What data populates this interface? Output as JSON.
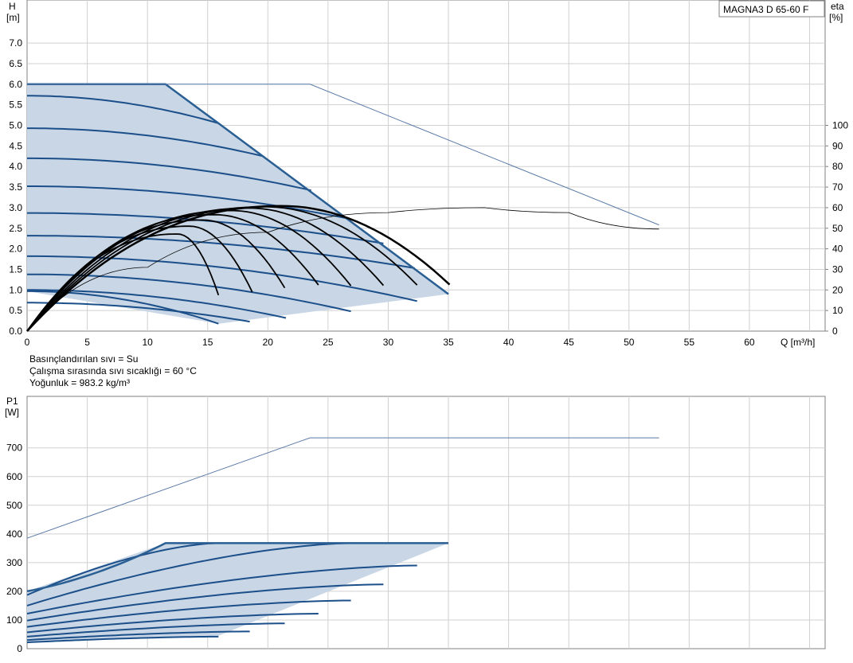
{
  "legend_box": "MAGNA3 D 65-60 F",
  "fluid_info": [
    "Basınçlandırılan sıvı = Su",
    "Çalışma sırasında sıvı sıcaklığı = 60 °C",
    "Yoğunluk = 983.2 kg/m³"
  ],
  "colors": {
    "curve": "#1b4f8a",
    "envelope": "#2a5f94",
    "fill": "#c9d6e5",
    "grid": "#d0d0d0",
    "efficiency": "#000000",
    "max_curve": "#5a7aa8"
  },
  "chart_data": [
    {
      "type": "line",
      "x_axis": {
        "label": "Q [m³/h]",
        "ticks": [
          0,
          5,
          10,
          15,
          20,
          25,
          30,
          35,
          40,
          45,
          50,
          55,
          60
        ],
        "range": [
          0,
          65
        ]
      },
      "y_axis": {
        "label": "H",
        "unit": "[m]",
        "ticks": [
          0.0,
          0.5,
          1.0,
          1.5,
          2.0,
          2.5,
          3.0,
          3.5,
          4.0,
          4.5,
          5.0,
          5.5,
          6.0,
          6.5,
          7.0
        ],
        "range": [
          0,
          8
        ]
      },
      "y2_axis": {
        "label": "eta",
        "unit": "[%]",
        "ticks": [
          0,
          10,
          20,
          30,
          40,
          50,
          60,
          70,
          80,
          90,
          100
        ],
        "range": [
          0,
          160
        ]
      },
      "operating_area": [
        [
          0,
          6.0
        ],
        [
          11.5,
          6.0
        ],
        [
          15.9,
          5.05
        ],
        [
          35,
          0.9
        ],
        [
          15.9,
          0.18
        ],
        [
          0,
          0.97
        ]
      ],
      "head_curves": [
        {
          "h0": 5.72,
          "q_end": 15.9,
          "h_end": 5.05
        },
        {
          "h0": 4.93,
          "q_end": 19.6,
          "h_end": 4.25
        },
        {
          "h0": 4.2,
          "q_end": 23.6,
          "h_end": 3.42
        },
        {
          "h0": 3.52,
          "q_end": 26.9,
          "h_end": 2.72
        },
        {
          "h0": 2.87,
          "q_end": 29.6,
          "h_end": 2.13
        },
        {
          "h0": 2.32,
          "q_end": 32.2,
          "h_end": 1.53
        },
        {
          "h0": 1.82,
          "q_end": 32.4,
          "h_end": 0.73
        },
        {
          "h0": 1.38,
          "q_end": 26.9,
          "h_end": 0.48
        },
        {
          "h0": 1.0,
          "q_end": 21.5,
          "h_end": 0.32
        },
        {
          "h0": 0.69,
          "q_end": 18.5,
          "h_end": 0.23
        },
        {
          "h0": 0.97,
          "q_end": 15.9,
          "h_end": 0.18
        }
      ],
      "max_curve": [
        [
          0,
          6.0
        ],
        [
          23.5,
          6.0
        ],
        [
          52.5,
          2.58
        ]
      ],
      "system_curve": [
        [
          0,
          0
        ],
        [
          10,
          1.55
        ],
        [
          20,
          2.4
        ],
        [
          30,
          2.88
        ],
        [
          38,
          3.0
        ],
        [
          45,
          2.88
        ],
        [
          52.5,
          2.48
        ]
      ],
      "efficiency_curves": [
        {
          "q_peak": 12.5,
          "eta_peak": 47.2,
          "q_end": 15.9,
          "eta_end": 17.5
        },
        {
          "q_peak": 13.5,
          "eta_peak": 51.0,
          "q_end": 18.7,
          "eta_end": 19.0
        },
        {
          "q_peak": 14.6,
          "eta_peak": 54.0,
          "q_end": 21.4,
          "eta_end": 21.0
        },
        {
          "q_peak": 15.6,
          "eta_peak": 56.6,
          "q_end": 24.2,
          "eta_end": 22.4
        },
        {
          "q_peak": 17.0,
          "eta_peak": 58.6,
          "q_end": 26.9,
          "eta_end": 22.0
        },
        {
          "q_peak": 18.5,
          "eta_peak": 59.8,
          "q_end": 29.6,
          "eta_end": 22.2
        },
        {
          "q_peak": 19.8,
          "eta_peak": 60.4,
          "q_end": 32.4,
          "eta_end": 22.4
        },
        {
          "q_peak": 21.2,
          "eta_peak": 60.8,
          "q_end": 35.1,
          "eta_end": 22.6
        }
      ]
    },
    {
      "type": "line",
      "y_axis": {
        "label": "P1",
        "unit": "[W]",
        "ticks": [
          0,
          100,
          200,
          300,
          400,
          500,
          600,
          700
        ],
        "range": [
          0,
          800
        ]
      },
      "x_range": [
        0,
        65
      ],
      "operating_area": [
        [
          0,
          200
        ],
        [
          11.5,
          368
        ],
        [
          35,
          368
        ],
        [
          15.9,
          45
        ],
        [
          0,
          22
        ]
      ],
      "power_curves": [
        {
          "p0": 187,
          "q_end": 15.9,
          "p_end": 368
        },
        {
          "p0": 150,
          "q_end": 27.0,
          "p_end": 368
        },
        {
          "p0": 122,
          "q_end": 32.4,
          "p_end": 290
        },
        {
          "p0": 98,
          "q_end": 29.6,
          "p_end": 224
        },
        {
          "p0": 76,
          "q_end": 26.9,
          "p_end": 168
        },
        {
          "p0": 57,
          "q_end": 24.2,
          "p_end": 122
        },
        {
          "p0": 42,
          "q_end": 21.4,
          "p_end": 88
        },
        {
          "p0": 30,
          "q_end": 18.5,
          "p_end": 60
        },
        {
          "p0": 22,
          "q_end": 15.9,
          "p_end": 42
        }
      ],
      "max_curve": [
        [
          0,
          385
        ],
        [
          23.5,
          735
        ],
        [
          52.5,
          735
        ]
      ]
    }
  ]
}
